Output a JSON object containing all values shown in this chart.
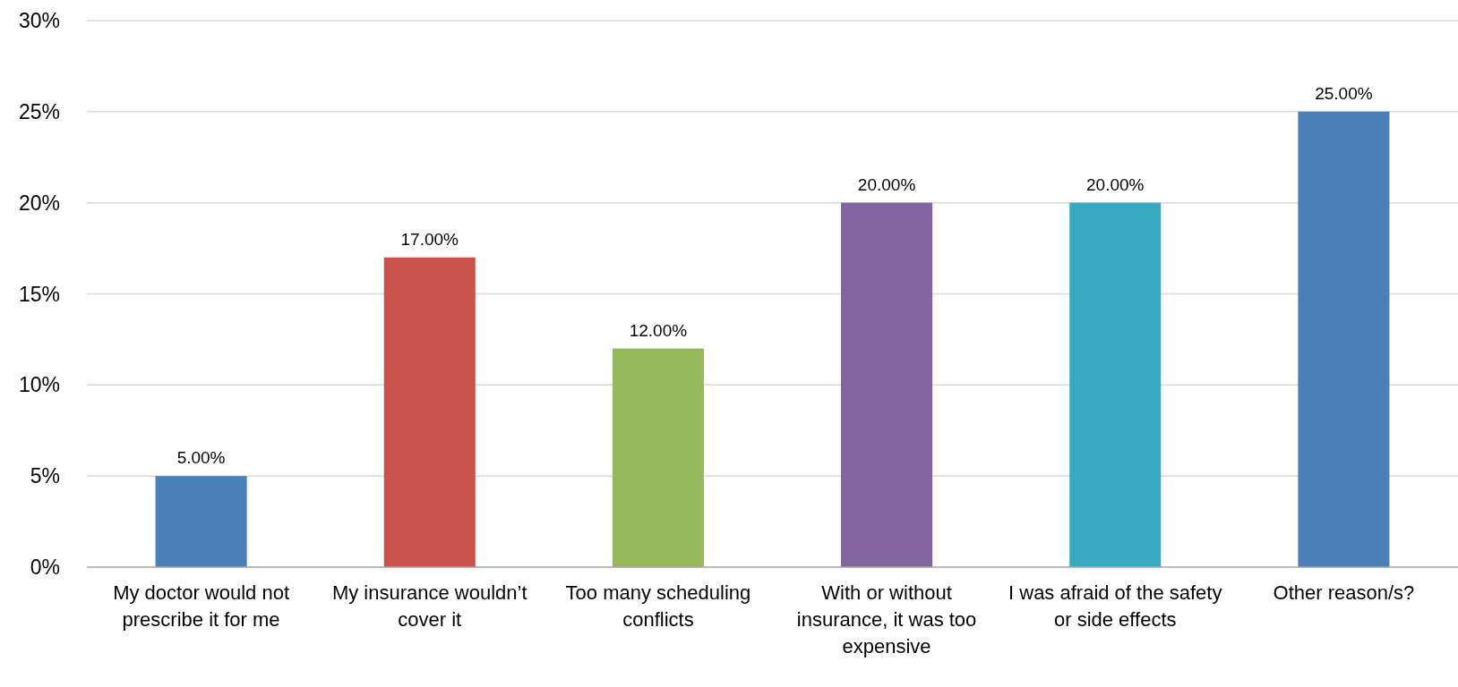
{
  "chart_data": {
    "type": "bar",
    "categories": [
      "My doctor would not prescribe it for me",
      "My insurance wouldn’t cover it",
      "Too many scheduling conflicts",
      "With or without insurance, it was too expensive",
      "I was afraid of the safety or side effects",
      "Other reason/s?"
    ],
    "values": [
      5,
      17,
      12,
      20,
      20,
      25
    ],
    "colors": [
      "#4a7fb9",
      "#c9524f",
      "#97b95e",
      "#8264a0",
      "#37aac2",
      "#4a7fb9"
    ],
    "value_labels": [
      "5.00%",
      "17.00%",
      "12.00%",
      "20.00%",
      "20.00%",
      "25.00%"
    ],
    "ylim": [
      0,
      30
    ],
    "yticks": [
      {
        "value": 0,
        "label": "0%"
      },
      {
        "value": 5,
        "label": "5%"
      },
      {
        "value": 10,
        "label": "10%"
      },
      {
        "value": 15,
        "label": "15%"
      },
      {
        "value": 20,
        "label": "20%"
      },
      {
        "value": 25,
        "label": "25%"
      },
      {
        "value": 30,
        "label": "30%"
      }
    ],
    "grid": "y"
  }
}
